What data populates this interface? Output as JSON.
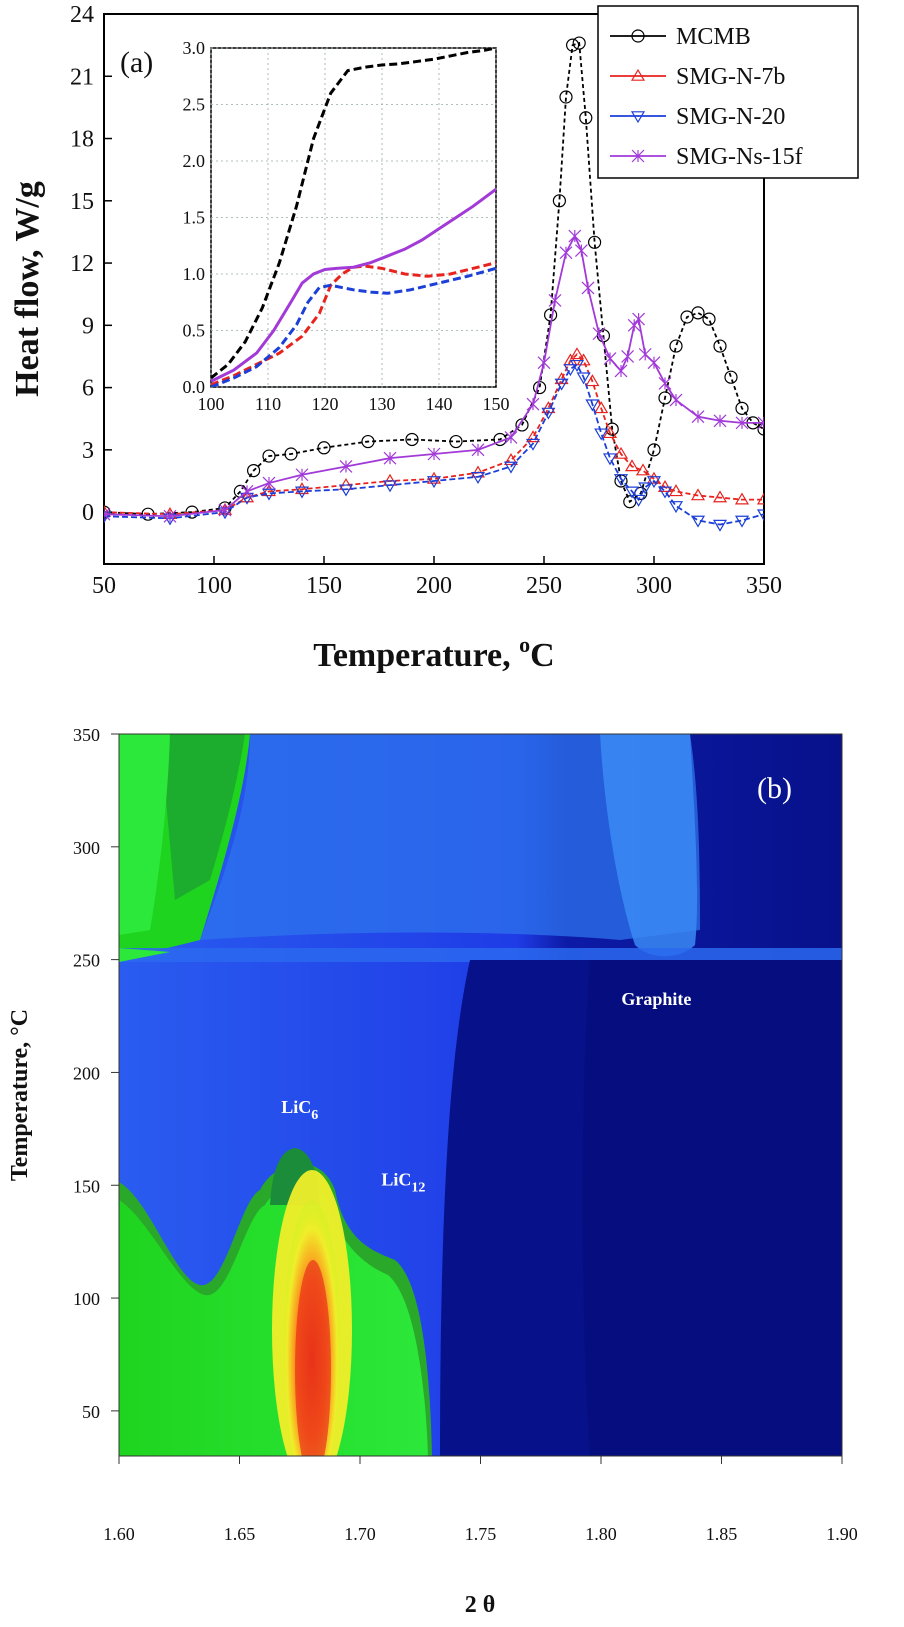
{
  "chart_data": [
    {
      "type": "line",
      "panel_label": "(a)",
      "xlabel": "Temperature, ",
      "xlabel_sup": "o",
      "xlabel_unit": "C",
      "ylabel": "Heat flow, W/g",
      "xlim": [
        50,
        350
      ],
      "ylim": [
        -2.5,
        24
      ],
      "x_ticks": [
        50,
        100,
        150,
        200,
        250,
        300,
        350
      ],
      "y_ticks": [
        0,
        3,
        6,
        9,
        12,
        15,
        18,
        21,
        24
      ],
      "legend_position": "top-right",
      "series": [
        {
          "name": "MCMB",
          "color": "#000000",
          "marker": "circle",
          "dash": "4,3",
          "x": [
            50,
            70,
            90,
            105,
            112,
            118,
            125,
            135,
            150,
            170,
            190,
            210,
            230,
            240,
            248,
            253,
            257,
            260,
            263,
            266,
            269,
            273,
            277,
            281,
            285,
            289,
            294,
            300,
            305,
            310,
            315,
            320,
            325,
            330,
            335,
            340,
            345,
            350
          ],
          "y": [
            0,
            -0.1,
            0,
            0.2,
            1.0,
            2.0,
            2.7,
            2.8,
            3.1,
            3.4,
            3.5,
            3.4,
            3.5,
            4.2,
            6.0,
            9.5,
            15,
            20,
            22.5,
            22.6,
            19,
            13,
            8.5,
            4.0,
            1.5,
            0.5,
            0.9,
            3.0,
            5.5,
            8.0,
            9.4,
            9.6,
            9.3,
            8.0,
            6.5,
            5.0,
            4.3,
            4.0
          ]
        },
        {
          "name": "SMG-N-7b",
          "color": "#e8231e",
          "marker": "triangle-up",
          "dash": "5,3",
          "x": [
            50,
            80,
            105,
            115,
            125,
            140,
            160,
            180,
            200,
            220,
            235,
            245,
            252,
            258,
            262,
            265,
            268,
            272,
            276,
            280,
            285,
            290,
            295,
            300,
            305,
            310,
            320,
            330,
            340,
            350
          ],
          "y": [
            0,
            -0.1,
            0.1,
            0.7,
            1.0,
            1.1,
            1.3,
            1.5,
            1.6,
            1.9,
            2.5,
            3.6,
            5.0,
            6.4,
            7.3,
            7.6,
            7.3,
            6.3,
            5.0,
            3.8,
            2.8,
            2.2,
            2.0,
            1.6,
            1.2,
            1.0,
            0.8,
            0.7,
            0.6,
            0.6
          ]
        },
        {
          "name": "SMG-N-20",
          "color": "#1c3fd8",
          "marker": "triangle-down",
          "dash": "6,3",
          "x": [
            50,
            80,
            105,
            115,
            125,
            140,
            160,
            180,
            200,
            220,
            235,
            245,
            252,
            258,
            262,
            265,
            268,
            272,
            276,
            280,
            285,
            290,
            293,
            296,
            300,
            305,
            310,
            320,
            330,
            340,
            350
          ],
          "y": [
            -0.2,
            -0.3,
            0,
            0.7,
            0.9,
            1.0,
            1.1,
            1.3,
            1.5,
            1.7,
            2.2,
            3.3,
            4.8,
            6.2,
            6.9,
            7.1,
            6.5,
            5.2,
            3.8,
            2.6,
            1.6,
            1.0,
            0.6,
            1.2,
            1.5,
            1.0,
            0.3,
            -0.4,
            -0.6,
            -0.4,
            -0.1
          ]
        },
        {
          "name": "SMG-Ns-15f",
          "color": "#a23ad8",
          "marker": "star",
          "dash": "",
          "x": [
            50,
            80,
            105,
            115,
            125,
            140,
            160,
            180,
            200,
            220,
            235,
            245,
            250,
            255,
            260,
            264,
            267,
            270,
            275,
            280,
            285,
            288,
            291,
            293,
            296,
            300,
            305,
            310,
            320,
            330,
            340,
            350
          ],
          "y": [
            -0.1,
            -0.2,
            0.1,
            1.0,
            1.4,
            1.8,
            2.2,
            2.6,
            2.8,
            3.0,
            3.6,
            5.2,
            7.2,
            10.2,
            12.5,
            13.3,
            12.6,
            10.8,
            8.6,
            7.4,
            6.8,
            7.5,
            9.0,
            9.3,
            7.6,
            7.2,
            6.2,
            5.4,
            4.6,
            4.4,
            4.3,
            4.3
          ]
        }
      ]
    },
    {
      "type": "line",
      "role": "inset",
      "xlim": [
        100,
        150
      ],
      "ylim": [
        0,
        3.0
      ],
      "x_ticks": [
        100,
        110,
        120,
        130,
        140,
        150
      ],
      "y_ticks": [
        0.0,
        0.5,
        1.0,
        1.5,
        2.0,
        2.5,
        3.0
      ],
      "grid": true,
      "series": [
        {
          "name": "MCMB",
          "color": "#000000",
          "x": [
            100,
            103,
            106,
            109,
            112,
            115,
            118,
            121,
            124,
            127,
            130,
            133,
            136,
            139,
            142,
            145,
            148,
            150
          ],
          "y": [
            0.08,
            0.2,
            0.4,
            0.7,
            1.1,
            1.6,
            2.2,
            2.6,
            2.8,
            2.83,
            2.85,
            2.86,
            2.88,
            2.9,
            2.93,
            2.96,
            2.98,
            3.0
          ]
        },
        {
          "name": "SMG-N-7b",
          "color": "#e8231e",
          "x": [
            100,
            104,
            108,
            112,
            116,
            119,
            121,
            123,
            125,
            127,
            130,
            134,
            138,
            142,
            146,
            150
          ],
          "y": [
            0.02,
            0.1,
            0.2,
            0.3,
            0.45,
            0.65,
            0.9,
            1.0,
            1.06,
            1.07,
            1.05,
            1.0,
            0.98,
            1.0,
            1.05,
            1.1
          ]
        },
        {
          "name": "SMG-N-20",
          "color": "#1c3fd8",
          "x": [
            100,
            104,
            108,
            112,
            115,
            117,
            119,
            121,
            123,
            125,
            128,
            131,
            135,
            140,
            145,
            150
          ],
          "y": [
            0.0,
            0.08,
            0.18,
            0.35,
            0.55,
            0.75,
            0.88,
            0.9,
            0.88,
            0.86,
            0.84,
            0.83,
            0.86,
            0.92,
            0.98,
            1.05
          ]
        },
        {
          "name": "SMG-Ns-15f",
          "color": "#a23ad8",
          "x": [
            100,
            104,
            108,
            111,
            114,
            116,
            118,
            120,
            122,
            125,
            128,
            131,
            134,
            137,
            140,
            143,
            146,
            150
          ],
          "y": [
            0.05,
            0.15,
            0.3,
            0.5,
            0.75,
            0.92,
            1.0,
            1.04,
            1.05,
            1.06,
            1.1,
            1.16,
            1.22,
            1.3,
            1.4,
            1.5,
            1.6,
            1.75
          ]
        }
      ]
    },
    {
      "type": "heatmap",
      "panel_label": "(b)",
      "xlabel": "2 θ",
      "ylabel": "Temperature, °C",
      "xlim": [
        1.6,
        1.9
      ],
      "ylim": [
        30,
        350
      ],
      "x_ticks": [
        "1.60",
        "1.65",
        "1.70",
        "1.75",
        "1.80",
        "1.85",
        "1.90"
      ],
      "y_ticks": [
        50,
        100,
        150,
        200,
        250,
        300,
        350
      ],
      "colormap": [
        "#07118a",
        "#1f3ce6",
        "#2e7af2",
        "#1fd41f",
        "#7cf21a",
        "#f0ee2a",
        "#ff7a1a",
        "#e8331a"
      ],
      "annotations": [
        {
          "text": "LiC",
          "sub": "6",
          "x": 1.675,
          "y": 182
        },
        {
          "text": "LiC",
          "sub": "12",
          "x": 1.718,
          "y": 150
        },
        {
          "text": "Graphite",
          "x": 1.823,
          "y": 230
        }
      ]
    }
  ]
}
